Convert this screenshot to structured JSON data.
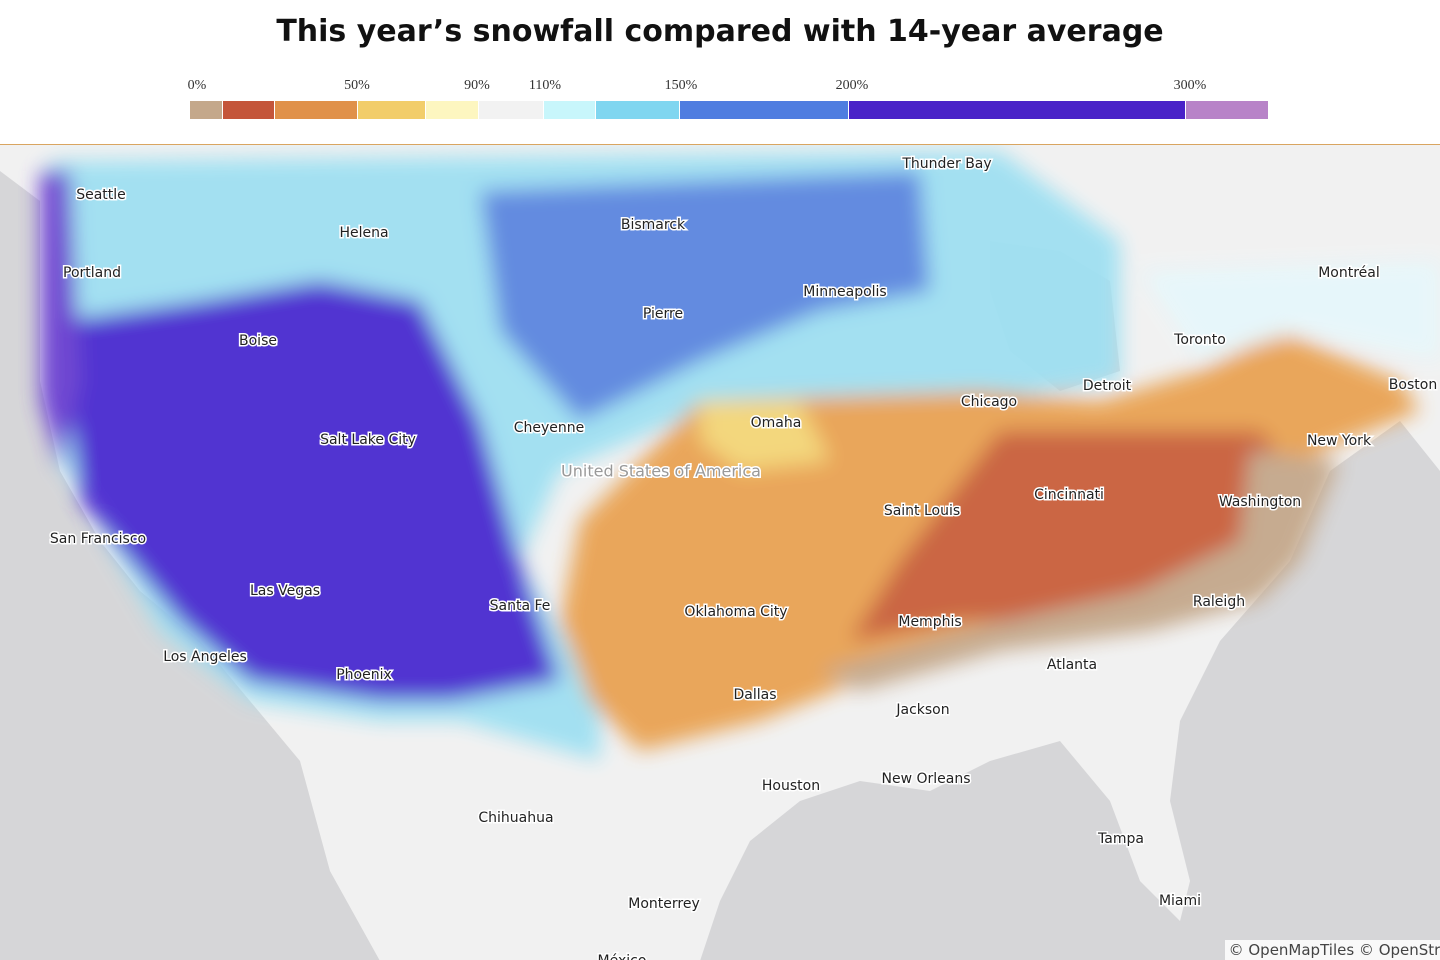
{
  "title": "This year’s snowfall compared with 14-year average",
  "legend": {
    "labels": [
      "0%",
      "50%",
      "90%",
      "110%",
      "150%",
      "200%",
      "300%"
    ]
  },
  "country_label": "United States of America",
  "cities": [
    "Seattle",
    "Helena",
    "Portland",
    "Boise",
    "Salt Lake City",
    "San Francisco",
    "Las Vegas",
    "Los Angeles",
    "Phoenix",
    "Santa Fe",
    "Cheyenne",
    "Bismarck",
    "Pierre",
    "Minneapolis",
    "Thunder Bay",
    "Omaha",
    "Chicago",
    "Detroit",
    "Toronto",
    "Montréal",
    "Boston",
    "New York",
    "Washington",
    "Cincinnati",
    "Saint Louis",
    "Oklahoma City",
    "Memphis",
    "Raleigh",
    "Atlanta",
    "Dallas",
    "Jackson",
    "Houston",
    "New Orleans",
    "Tampa",
    "Miami",
    "Chihuahua",
    "Monterrey",
    "México"
  ],
  "attribution": "© OpenMapTiles © OpenStreetMap"
}
